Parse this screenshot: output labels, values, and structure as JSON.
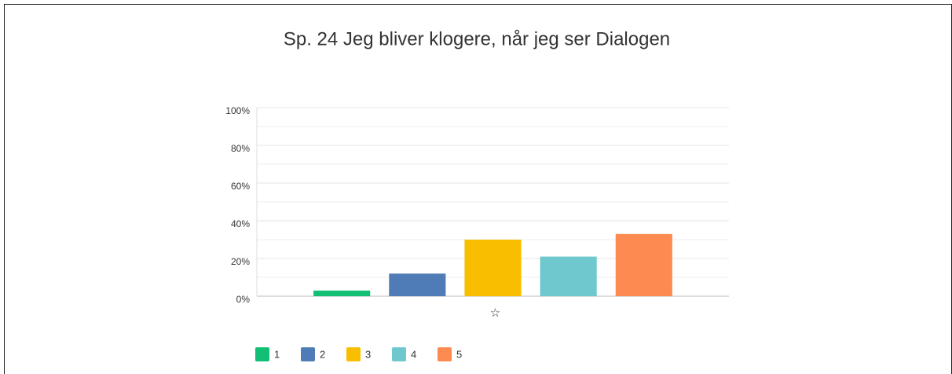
{
  "chart_data": {
    "type": "bar",
    "title": "Sp. 24 Jeg bliver klogere, når jeg ser Dialogen",
    "categories": [
      "☆"
    ],
    "series": [
      {
        "name": "1",
        "color": "#12bf75",
        "values": [
          3
        ]
      },
      {
        "name": "2",
        "color": "#4f7cb6",
        "values": [
          12
        ]
      },
      {
        "name": "3",
        "color": "#f9be00",
        "values": [
          30
        ]
      },
      {
        "name": "4",
        "color": "#6ec8ce",
        "values": [
          21
        ]
      },
      {
        "name": "5",
        "color": "#fd8a50",
        "values": [
          33
        ]
      }
    ],
    "ylim": [
      0,
      100
    ],
    "yticks": [
      {
        "value": 0,
        "label": "0%"
      },
      {
        "value": 20,
        "label": "20%"
      },
      {
        "value": 40,
        "label": "40%"
      },
      {
        "value": 60,
        "label": "60%"
      },
      {
        "value": 80,
        "label": "80%"
      },
      {
        "value": 100,
        "label": "100%"
      }
    ],
    "minor_yticks": [
      10,
      30,
      50,
      70,
      90
    ],
    "grid": true,
    "legend": "bottom"
  }
}
